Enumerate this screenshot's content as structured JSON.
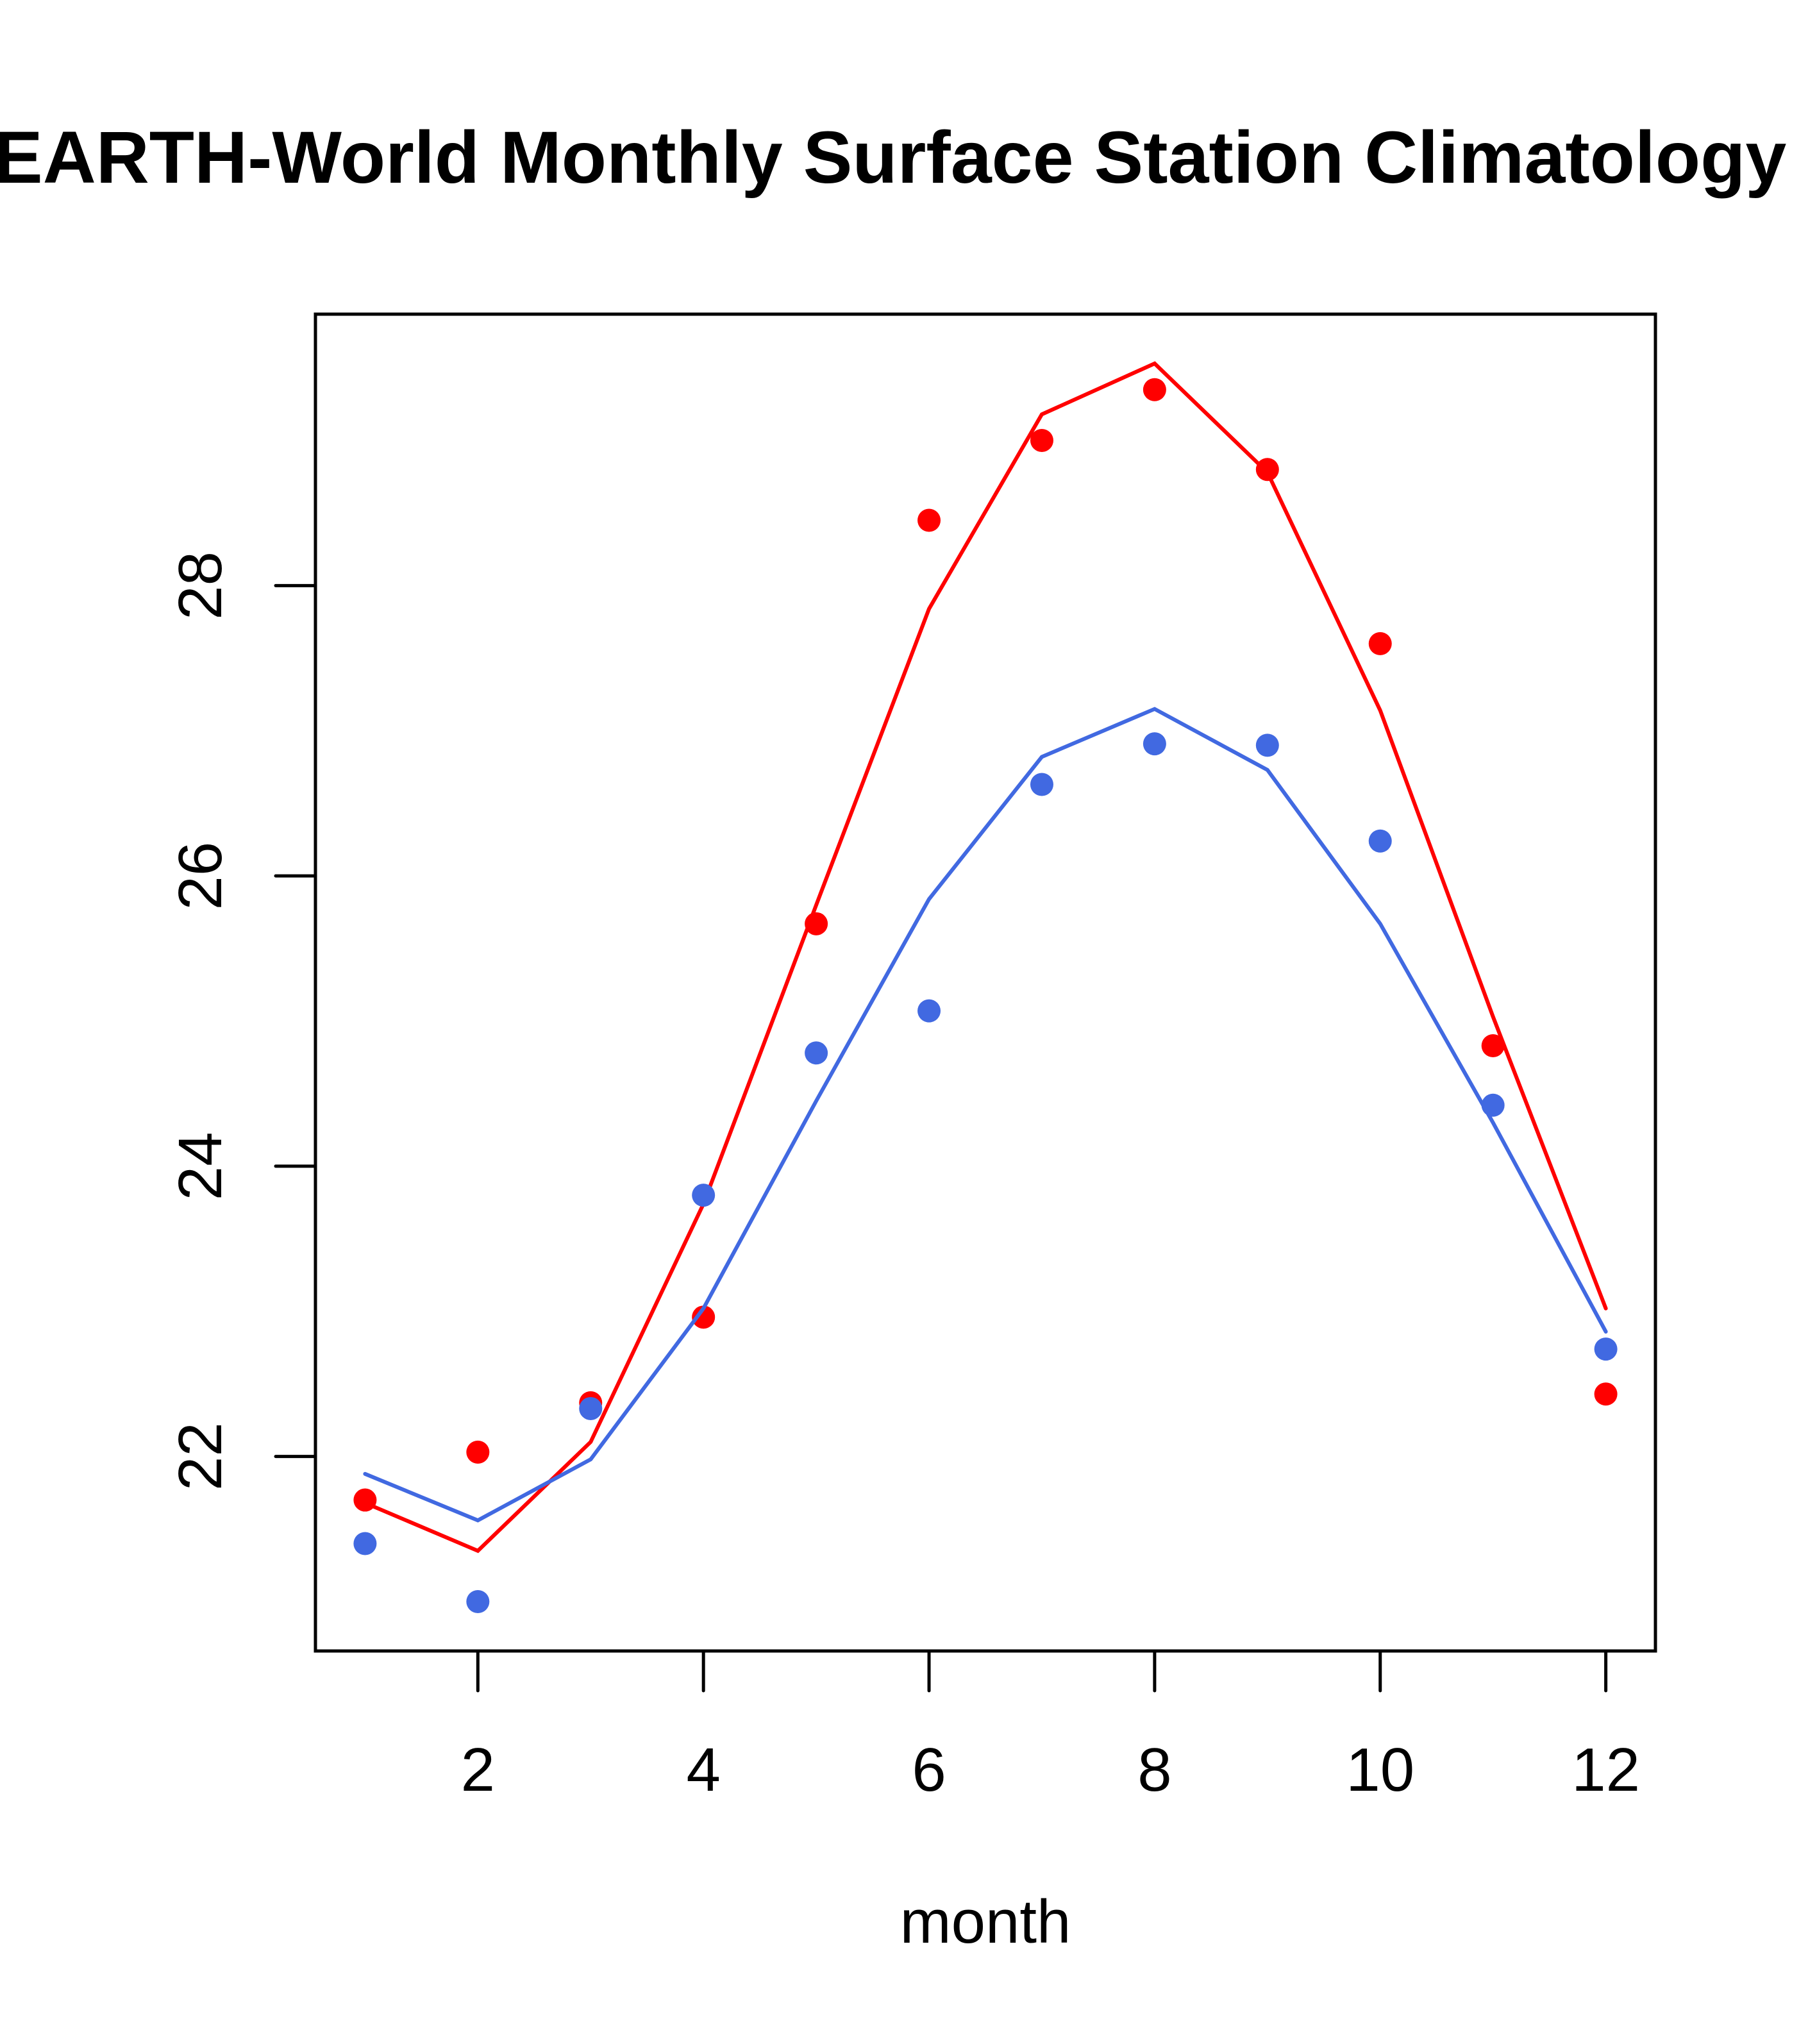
{
  "chart_data": {
    "type": "line",
    "title": "BEARTH-World Monthly Surface Station Climatology",
    "title_visible_text": "EARTH-World Monthly Surface Station Climatology",
    "xlabel": "month",
    "ylabel": "",
    "xlim": [
      0.56,
      12.44
    ],
    "ylim": [
      20.66,
      29.87
    ],
    "x_ticks": [
      2,
      4,
      6,
      8,
      10,
      12
    ],
    "x_tick_labels": [
      "2",
      "4",
      "6",
      "8",
      "10",
      "12"
    ],
    "y_ticks": [
      22,
      24,
      26,
      28
    ],
    "y_tick_labels": [
      "22",
      "24",
      "26",
      "28"
    ],
    "grid": false,
    "legend": null,
    "x": [
      1,
      2,
      3,
      4,
      5,
      6,
      7,
      8,
      9,
      10,
      11,
      12
    ],
    "series": [
      {
        "name": "red-points",
        "kind": "points",
        "color": "#ff0000",
        "values": [
          21.7,
          22.03,
          22.37,
          22.96,
          25.67,
          28.45,
          29.0,
          29.35,
          28.8,
          27.6,
          24.83,
          22.43
        ]
      },
      {
        "name": "red-line",
        "kind": "line",
        "color": "#ff0000",
        "values": [
          21.68,
          21.35,
          22.1,
          23.74,
          25.8,
          27.84,
          29.18,
          29.53,
          28.78,
          27.14,
          25.03,
          23.02
        ]
      },
      {
        "name": "blue-points",
        "kind": "points",
        "color": "#4169e1",
        "values": [
          21.4,
          21.0,
          22.33,
          23.8,
          24.78,
          25.07,
          26.63,
          26.91,
          26.9,
          26.24,
          24.42,
          22.74
        ]
      },
      {
        "name": "blue-line",
        "kind": "line",
        "color": "#4169e1",
        "values": [
          21.88,
          21.56,
          21.98,
          23.02,
          24.45,
          25.84,
          26.82,
          27.15,
          26.73,
          25.67,
          24.3,
          22.86
        ]
      }
    ]
  }
}
